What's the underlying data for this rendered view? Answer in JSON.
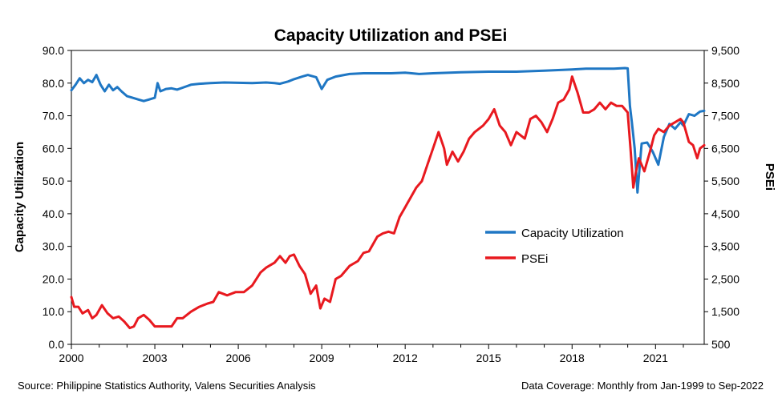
{
  "chart_data": {
    "type": "line",
    "title": "Capacity Utilization and PSEi",
    "ylabel_left": "Capacity Utilization",
    "ylabel_right": "PSEi",
    "ylim_left": [
      0,
      90
    ],
    "ylim_right": [
      500,
      9500
    ],
    "xlim": [
      2000,
      2022.75
    ],
    "x_tick_labels": [
      "2000",
      "2003",
      "2006",
      "2009",
      "2012",
      "2015",
      "2018",
      "2021"
    ],
    "y_left_tick_labels": [
      "0.0",
      "10.0",
      "20.0",
      "30.0",
      "40.0",
      "50.0",
      "60.0",
      "70.0",
      "80.0",
      "90.0"
    ],
    "y_right_tick_labels": [
      "500",
      "1,500",
      "2,500",
      "3,500",
      "4,500",
      "5,500",
      "6,500",
      "7,500",
      "8,500",
      "9,500"
    ],
    "grid": false,
    "legend_position": "center-right",
    "source_note": "Source: Philippine Statistics Authority, Valens Securities Analysis",
    "coverage_note": "Data Coverage: Monthly from Jan-1999 to Sep-2022",
    "series": [
      {
        "name": "Capacity Utilization",
        "axis": "left",
        "color": "#1F77C4",
        "x": [
          2000.0,
          2000.15,
          2000.3,
          2000.45,
          2000.6,
          2000.75,
          2000.9,
          2001.05,
          2001.2,
          2001.35,
          2001.5,
          2001.65,
          2001.8,
          2002.0,
          2002.2,
          2002.4,
          2002.6,
          2002.8,
          2003.0,
          2003.1,
          2003.2,
          2003.4,
          2003.6,
          2003.8,
          2004.0,
          2004.3,
          2004.6,
          2005.0,
          2005.5,
          2006.0,
          2006.5,
          2007.0,
          2007.3,
          2007.5,
          2007.8,
          2008.0,
          2008.3,
          2008.5,
          2008.8,
          2009.0,
          2009.2,
          2009.5,
          2010.0,
          2010.5,
          2011.0,
          2011.5,
          2012.0,
          2012.5,
          2013.0,
          2014.0,
          2015.0,
          2016.0,
          2017.0,
          2018.0,
          2018.5,
          2019.0,
          2019.5,
          2019.9,
          2020.0,
          2020.08,
          2020.15,
          2020.25,
          2020.35,
          2020.5,
          2020.7,
          2020.9,
          2021.1,
          2021.3,
          2021.5,
          2021.7,
          2021.9,
          2022.0,
          2022.2,
          2022.4,
          2022.6,
          2022.75
        ],
        "y": [
          77.8,
          79.5,
          81.5,
          80.0,
          81.0,
          80.3,
          82.5,
          79.5,
          77.5,
          79.5,
          77.8,
          78.8,
          77.5,
          76.0,
          75.5,
          75.0,
          74.5,
          75.0,
          75.5,
          80.0,
          77.5,
          78.2,
          78.4,
          78.0,
          78.6,
          79.5,
          79.8,
          80.0,
          80.2,
          80.1,
          80.0,
          80.2,
          80.0,
          79.8,
          80.5,
          81.2,
          82.0,
          82.5,
          81.8,
          78.2,
          81.0,
          82.0,
          82.8,
          83.0,
          83.0,
          83.0,
          83.2,
          82.8,
          83.0,
          83.3,
          83.5,
          83.5,
          83.8,
          84.2,
          84.4,
          84.4,
          84.4,
          84.6,
          84.5,
          73.0,
          68.0,
          60.0,
          46.5,
          61.5,
          61.8,
          59.0,
          55.0,
          63.5,
          67.5,
          66.0,
          68.0,
          67.0,
          70.5,
          70.0,
          71.3,
          71.5
        ]
      },
      {
        "name": "PSEi",
        "axis": "right",
        "color": "#E8191F",
        "x": [
          2000.0,
          2000.1,
          2000.25,
          2000.4,
          2000.6,
          2000.75,
          2000.9,
          2001.1,
          2001.3,
          2001.5,
          2001.7,
          2001.9,
          2002.1,
          2002.25,
          2002.4,
          2002.6,
          2002.8,
          2003.0,
          2003.2,
          2003.4,
          2003.6,
          2003.8,
          2004.0,
          2004.3,
          2004.6,
          2004.9,
          2005.1,
          2005.3,
          2005.6,
          2005.9,
          2006.2,
          2006.5,
          2006.8,
          2007.0,
          2007.3,
          2007.5,
          2007.7,
          2007.85,
          2008.0,
          2008.2,
          2008.4,
          2008.6,
          2008.8,
          2008.95,
          2009.1,
          2009.3,
          2009.5,
          2009.7,
          2010.0,
          2010.3,
          2010.5,
          2010.7,
          2011.0,
          2011.2,
          2011.4,
          2011.6,
          2011.8,
          2012.0,
          2012.2,
          2012.4,
          2012.6,
          2012.8,
          2013.0,
          2013.2,
          2013.4,
          2013.5,
          2013.7,
          2013.9,
          2014.1,
          2014.3,
          2014.5,
          2014.8,
          2015.0,
          2015.2,
          2015.4,
          2015.6,
          2015.8,
          2016.0,
          2016.3,
          2016.5,
          2016.7,
          2016.9,
          2017.1,
          2017.3,
          2017.5,
          2017.7,
          2017.9,
          2018.0,
          2018.2,
          2018.4,
          2018.6,
          2018.8,
          2019.0,
          2019.2,
          2019.4,
          2019.6,
          2019.8,
          2020.0,
          2020.1,
          2020.2,
          2020.3,
          2020.4,
          2020.6,
          2020.8,
          2020.95,
          2021.1,
          2021.3,
          2021.5,
          2021.7,
          2021.9,
          2022.0,
          2022.2,
          2022.35,
          2022.5,
          2022.6,
          2022.75
        ],
        "y": [
          1950,
          1650,
          1650,
          1450,
          1550,
          1300,
          1400,
          1700,
          1450,
          1300,
          1350,
          1200,
          1000,
          1050,
          1300,
          1400,
          1250,
          1050,
          1050,
          1050,
          1050,
          1300,
          1300,
          1500,
          1650,
          1750,
          1800,
          2100,
          2000,
          2100,
          2100,
          2300,
          2700,
          2850,
          3000,
          3200,
          3000,
          3200,
          3250,
          2900,
          2650,
          2050,
          2300,
          1600,
          1900,
          1800,
          2500,
          2600,
          2900,
          3050,
          3300,
          3350,
          3800,
          3900,
          3950,
          3900,
          4400,
          4700,
          5000,
          5300,
          5500,
          6000,
          6500,
          7000,
          6500,
          6000,
          6400,
          6100,
          6400,
          6800,
          7000,
          7200,
          7400,
          7700,
          7200,
          7000,
          6600,
          7000,
          6800,
          7400,
          7500,
          7300,
          7000,
          7400,
          7900,
          8000,
          8300,
          8700,
          8200,
          7600,
          7600,
          7700,
          7900,
          7700,
          7900,
          7800,
          7800,
          7600,
          6500,
          5300,
          5800,
          6200,
          5800,
          6400,
          6900,
          7100,
          7000,
          7200,
          7300,
          7400,
          7300,
          6700,
          6600,
          6200,
          6500,
          6600
        ]
      }
    ]
  }
}
